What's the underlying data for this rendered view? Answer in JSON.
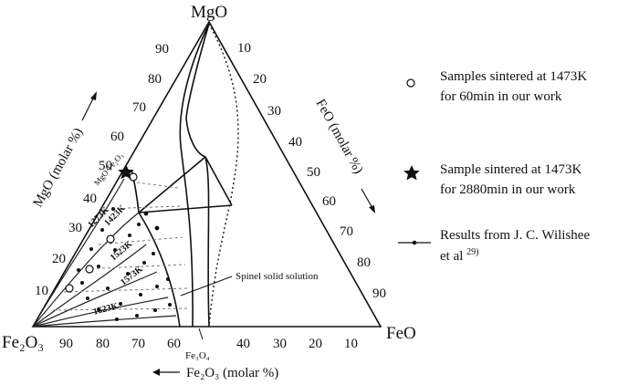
{
  "apexes": {
    "top": "MgO",
    "left": "Fe₂O₃",
    "right": "FeO"
  },
  "axes": {
    "left": {
      "title": "MgO (molar %)",
      "ticks": [
        "10",
        "20",
        "30",
        "40",
        "50",
        "60",
        "70",
        "80",
        "90"
      ]
    },
    "right": {
      "title": "FeO (molar %)",
      "ticks": [
        "10",
        "20",
        "30",
        "40",
        "50",
        "60",
        "70",
        "80",
        "90"
      ]
    },
    "bottom": {
      "title": "Fe₂O₃ (molar %)",
      "ticks": [
        "90",
        "80",
        "70",
        "60",
        "40",
        "30",
        "20",
        "10"
      ]
    }
  },
  "labels": {
    "compound": "MgO·Fe₂O₃",
    "magnetite": "Fe₃O₄",
    "spinel": "Spinel solid solution"
  },
  "isotherms": [
    "1273K",
    "1423K",
    "1523K",
    "1573K",
    "1623K"
  ],
  "legend": [
    {
      "symbol": "circle",
      "line1": "Samples sintered at 1473K",
      "line2": "for 60min in our work"
    },
    {
      "symbol": "star",
      "line1": "Sample sintered at 1473K",
      "line2": "for 2880min in our work"
    },
    {
      "symbol": "line-dot",
      "line1": "Results from J. C. Wilishee",
      "line2": "et al ",
      "superscript": "29)"
    }
  ]
}
